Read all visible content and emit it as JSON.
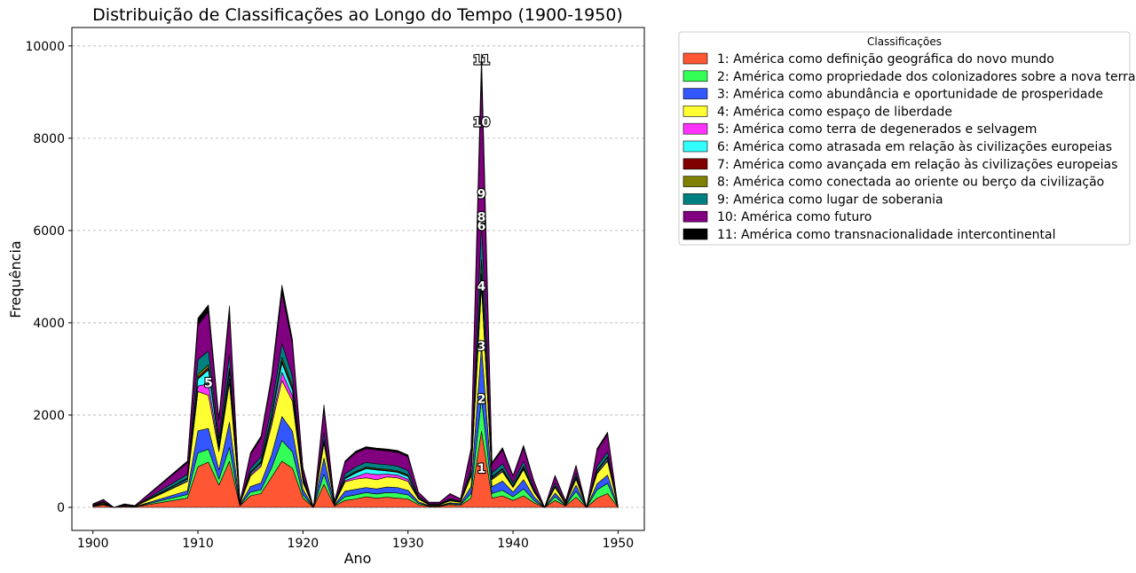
{
  "chart_data": {
    "type": "area",
    "stacked": true,
    "title": "Distribuição de Classificações ao Longo do Tempo (1900-1950)",
    "xlabel": "Ano",
    "ylabel": "Frequência",
    "xlim": [
      1898,
      1952.5
    ],
    "ylim": [
      -500,
      10400
    ],
    "xticks": [
      1900,
      1910,
      1920,
      1930,
      1940,
      1950
    ],
    "yticks": [
      0,
      2000,
      4000,
      6000,
      8000,
      10000
    ],
    "grid": "horizontal dashed",
    "legend_title": "Classificações",
    "legend_position": "outside-right-top",
    "x": [
      1900,
      1901,
      1902,
      1903,
      1904,
      1909,
      1910,
      1911,
      1912,
      1913,
      1914,
      1915,
      1916,
      1917,
      1918,
      1919,
      1920,
      1921,
      1922,
      1923,
      1924,
      1925,
      1926,
      1927,
      1928,
      1929,
      1930,
      1931,
      1932,
      1933,
      1934,
      1935,
      1936,
      1937,
      1938,
      1939,
      1940,
      1941,
      1942,
      1943,
      1944,
      1945,
      1946,
      1947,
      1948,
      1949,
      1950
    ],
    "series": [
      {
        "name": "1: América como definição geográfica do novo mundo",
        "color": "#FF5733",
        "values": [
          20,
          50,
          0,
          20,
          10,
          200,
          880,
          980,
          480,
          1000,
          30,
          250,
          300,
          650,
          1000,
          850,
          200,
          0,
          500,
          30,
          150,
          180,
          230,
          200,
          220,
          200,
          180,
          60,
          20,
          20,
          60,
          40,
          200,
          1650,
          200,
          250,
          150,
          250,
          100,
          0,
          150,
          30,
          220,
          0,
          200,
          300,
          0
        ]
      },
      {
        "name": "2: América como propriedade dos colonizadores sobre a nova terra",
        "color": "#33FF57",
        "values": [
          5,
          15,
          0,
          5,
          3,
          80,
          300,
          280,
          130,
          300,
          10,
          80,
          80,
          200,
          450,
          350,
          70,
          0,
          220,
          10,
          80,
          90,
          90,
          90,
          100,
          110,
          90,
          30,
          10,
          10,
          20,
          20,
          100,
          700,
          100,
          120,
          80,
          150,
          50,
          0,
          80,
          10,
          130,
          0,
          180,
          220,
          0
        ]
      },
      {
        "name": "3: América como abundância e oportunidade de prosperidade",
        "color": "#3357FF",
        "values": [
          5,
          15,
          0,
          5,
          3,
          80,
          480,
          450,
          200,
          550,
          15,
          120,
          150,
          280,
          520,
          450,
          120,
          0,
          350,
          15,
          120,
          120,
          110,
          110,
          120,
          120,
          100,
          30,
          10,
          10,
          20,
          20,
          150,
          1150,
          150,
          200,
          100,
          200,
          80,
          0,
          80,
          15,
          130,
          0,
          130,
          180,
          0
        ]
      },
      {
        "name": "4: América como espaço de liberdade",
        "color": "#FFFF33",
        "values": [
          10,
          20,
          0,
          10,
          5,
          200,
          850,
          720,
          400,
          850,
          20,
          230,
          350,
          630,
          780,
          650,
          150,
          0,
          320,
          20,
          200,
          220,
          210,
          200,
          220,
          210,
          190,
          60,
          15,
          15,
          40,
          30,
          220,
          1300,
          150,
          200,
          100,
          220,
          100,
          0,
          120,
          20,
          130,
          0,
          220,
          300,
          0
        ]
      },
      {
        "name": "5: América como terra de degenerados e selvagem",
        "color": "#FF33FF",
        "values": [
          2,
          5,
          0,
          2,
          1,
          20,
          120,
          250,
          50,
          100,
          5,
          30,
          40,
          80,
          180,
          120,
          30,
          0,
          20,
          5,
          30,
          50,
          100,
          110,
          60,
          60,
          50,
          10,
          5,
          5,
          10,
          5,
          20,
          80,
          20,
          20,
          10,
          20,
          10,
          0,
          10,
          5,
          20,
          0,
          20,
          30,
          0
        ]
      },
      {
        "name": "6: América como atrasada em relação às civilizações europeias",
        "color": "#33FFFF",
        "values": [
          2,
          5,
          0,
          2,
          1,
          30,
          150,
          300,
          60,
          120,
          5,
          30,
          40,
          80,
          200,
          120,
          30,
          0,
          30,
          5,
          40,
          80,
          100,
          100,
          70,
          60,
          60,
          10,
          5,
          5,
          10,
          5,
          30,
          150,
          20,
          30,
          10,
          30,
          10,
          0,
          10,
          5,
          20,
          0,
          30,
          40,
          0
        ]
      },
      {
        "name": "7: América como avançada em relação às civilizações europeias",
        "color": "#800000",
        "values": [
          1,
          2,
          0,
          1,
          1,
          10,
          40,
          50,
          20,
          40,
          2,
          10,
          15,
          25,
          50,
          40,
          10,
          0,
          15,
          2,
          10,
          15,
          15,
          15,
          15,
          15,
          15,
          5,
          2,
          2,
          5,
          2,
          10,
          50,
          10,
          10,
          5,
          10,
          5,
          0,
          5,
          2,
          10,
          0,
          10,
          10,
          0
        ]
      },
      {
        "name": "8: América como conectada ao oriente ou berço da civilização",
        "color": "#808000",
        "values": [
          1,
          2,
          0,
          1,
          1,
          15,
          60,
          60,
          30,
          60,
          2,
          15,
          20,
          35,
          70,
          60,
          15,
          0,
          20,
          2,
          15,
          20,
          20,
          20,
          20,
          20,
          20,
          5,
          2,
          2,
          5,
          2,
          20,
          300,
          15,
          15,
          10,
          15,
          10,
          0,
          10,
          2,
          15,
          0,
          15,
          20,
          0
        ]
      },
      {
        "name": "9: América como lugar de soberania",
        "color": "#008080",
        "values": [
          5,
          10,
          0,
          5,
          3,
          80,
          320,
          300,
          120,
          300,
          10,
          80,
          100,
          180,
          300,
          200,
          60,
          0,
          150,
          10,
          80,
          100,
          100,
          100,
          100,
          100,
          90,
          30,
          10,
          10,
          20,
          10,
          80,
          800,
          80,
          100,
          60,
          100,
          40,
          0,
          60,
          10,
          70,
          0,
          80,
          100,
          0
        ]
      },
      {
        "name": "10: América como futuro",
        "color": "#800080",
        "values": [
          20,
          40,
          0,
          20,
          10,
          250,
          750,
          850,
          400,
          900,
          20,
          300,
          400,
          600,
          1100,
          700,
          150,
          0,
          500,
          30,
          250,
          300,
          300,
          300,
          300,
          300,
          300,
          80,
          30,
          30,
          100,
          50,
          400,
          3200,
          200,
          300,
          150,
          300,
          150,
          0,
          150,
          40,
          150,
          0,
          350,
          380,
          0
        ]
      },
      {
        "name": "11: América como transnacionalidade intercontinental",
        "color": "#000000",
        "values": [
          5,
          10,
          0,
          5,
          3,
          40,
          150,
          150,
          60,
          150,
          5,
          40,
          50,
          80,
          170,
          100,
          30,
          0,
          100,
          5,
          30,
          40,
          40,
          40,
          40,
          40,
          40,
          10,
          5,
          5,
          10,
          5,
          50,
          450,
          30,
          50,
          20,
          50,
          20,
          0,
          20,
          5,
          20,
          0,
          40,
          50,
          0
        ]
      }
    ],
    "annotations": [
      {
        "text": "1",
        "x": 1937,
        "y": 850
      },
      {
        "text": "2",
        "x": 1937,
        "y": 2350
      },
      {
        "text": "3",
        "x": 1937,
        "y": 3500
      },
      {
        "text": "4",
        "x": 1937,
        "y": 4800
      },
      {
        "text": "5",
        "x": 1911,
        "y": 2700
      },
      {
        "text": "6",
        "x": 1937,
        "y": 6100
      },
      {
        "text": "8",
        "x": 1937,
        "y": 6300
      },
      {
        "text": "9",
        "x": 1937,
        "y": 6800
      },
      {
        "text": "10",
        "x": 1937,
        "y": 8350
      },
      {
        "text": "11",
        "x": 1937,
        "y": 9700
      }
    ]
  }
}
